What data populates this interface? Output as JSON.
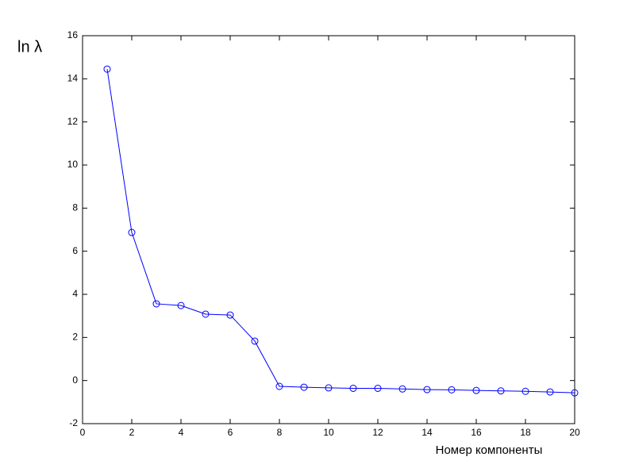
{
  "chart_data": {
    "type": "line",
    "y_label": "ln λ",
    "x_label": "Номер компоненты",
    "x": [
      1,
      2,
      3,
      4,
      5,
      6,
      7,
      8,
      9,
      10,
      11,
      12,
      13,
      14,
      15,
      16,
      17,
      18,
      19,
      20
    ],
    "series": [
      {
        "color": "#0000ff",
        "values": [
          14.45,
          6.87,
          3.56,
          3.48,
          3.08,
          3.04,
          1.83,
          -0.27,
          -0.31,
          -0.34,
          -0.36,
          -0.36,
          -0.39,
          -0.42,
          -0.43,
          -0.46,
          -0.48,
          -0.5,
          -0.53,
          -0.57
        ]
      }
    ],
    "xlim": [
      0,
      20
    ],
    "xticks": [
      0,
      2,
      4,
      6,
      8,
      10,
      12,
      14,
      16,
      18,
      20
    ],
    "ylim": [
      -2,
      16
    ],
    "yticks": [
      -2,
      0,
      2,
      4,
      6,
      8,
      10,
      12,
      14,
      16
    ],
    "grid": false
  }
}
